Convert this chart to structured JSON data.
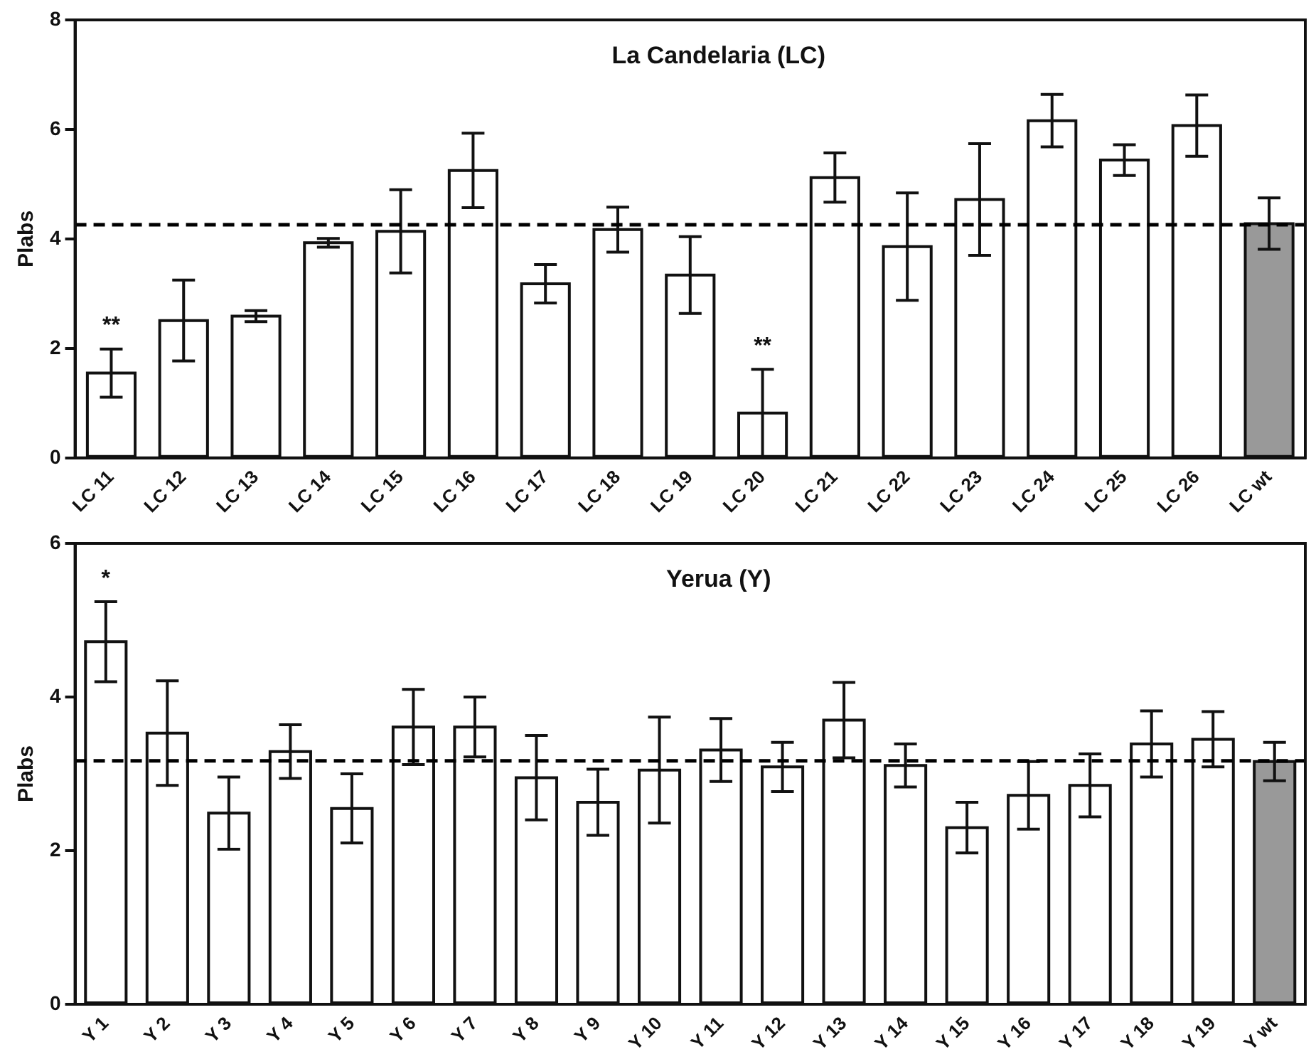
{
  "chart_data": [
    {
      "type": "bar",
      "title": "La Candelaria (LC)",
      "ylabel": "Plabs",
      "categories": [
        "LC 11",
        "LC 12",
        "LC 13",
        "LC 14",
        "LC 15",
        "LC 16",
        "LC 17",
        "LC 18",
        "LC 19",
        "LC 20",
        "LC 21",
        "LC 22",
        "LC 23",
        "LC 24",
        "LC 25",
        "LC 26",
        "LC wt"
      ],
      "values": [
        1.55,
        2.51,
        2.59,
        3.93,
        4.14,
        5.25,
        3.18,
        4.17,
        3.34,
        0.82,
        5.12,
        3.86,
        4.72,
        6.16,
        5.44,
        6.07,
        4.28
      ],
      "errors": [
        0.44,
        0.74,
        0.1,
        0.08,
        0.76,
        0.68,
        0.35,
        0.41,
        0.7,
        0.8,
        0.45,
        0.98,
        1.02,
        0.48,
        0.28,
        0.56,
        0.47
      ],
      "colors": [
        "#ffffff",
        "#ffffff",
        "#ffffff",
        "#ffffff",
        "#ffffff",
        "#ffffff",
        "#ffffff",
        "#ffffff",
        "#ffffff",
        "#ffffff",
        "#ffffff",
        "#ffffff",
        "#ffffff",
        "#ffffff",
        "#ffffff",
        "#ffffff",
        "#999999"
      ],
      "ylim": [
        0,
        8
      ],
      "yticks": [
        0,
        2,
        4,
        6,
        8
      ],
      "grid": false,
      "legend": false,
      "ref_lines": [
        {
          "axis": "y",
          "value": 4.26,
          "label": null,
          "color": "#000000",
          "line_style": "dashed"
        }
      ],
      "annotations": [
        {
          "text": "**",
          "x": "LC 11",
          "y": 1.55
        },
        {
          "text": "**",
          "x": "LC 20",
          "y": 0.82
        }
      ]
    },
    {
      "type": "bar",
      "title": "Yerua (Y)",
      "ylabel": "Plabs",
      "categories": [
        "Y 1",
        "Y 2",
        "Y 3",
        "Y 4",
        "Y 5",
        "Y 6",
        "Y 7",
        "Y 8",
        "Y 9",
        "Y 10",
        "Y 11",
        "Y 12",
        "Y 13",
        "Y 14",
        "Y 15",
        "Y 16",
        "Y 17",
        "Y 18",
        "Y 19",
        "Y wt"
      ],
      "values": [
        4.72,
        3.53,
        2.49,
        3.29,
        2.55,
        3.61,
        3.61,
        2.95,
        2.63,
        3.05,
        3.31,
        3.09,
        3.7,
        3.11,
        2.3,
        2.72,
        2.85,
        3.39,
        3.45,
        3.16
      ],
      "errors": [
        0.52,
        0.68,
        0.47,
        0.35,
        0.45,
        0.49,
        0.39,
        0.55,
        0.43,
        0.69,
        0.41,
        0.32,
        0.49,
        0.28,
        0.33,
        0.44,
        0.41,
        0.43,
        0.36,
        0.25
      ],
      "colors": [
        "#ffffff",
        "#ffffff",
        "#ffffff",
        "#ffffff",
        "#ffffff",
        "#ffffff",
        "#ffffff",
        "#ffffff",
        "#ffffff",
        "#ffffff",
        "#ffffff",
        "#ffffff",
        "#ffffff",
        "#ffffff",
        "#ffffff",
        "#ffffff",
        "#ffffff",
        "#ffffff",
        "#ffffff",
        "#999999"
      ],
      "ylim": [
        0,
        6
      ],
      "yticks": [
        0,
        2,
        4,
        6
      ],
      "grid": false,
      "legend": false,
      "ref_lines": [
        {
          "axis": "y",
          "value": 3.17,
          "label": null,
          "color": "#000000",
          "line_style": "dashed"
        }
      ],
      "annotations": [
        {
          "text": "*",
          "x": "Y 1",
          "y": 4.72
        }
      ]
    }
  ]
}
